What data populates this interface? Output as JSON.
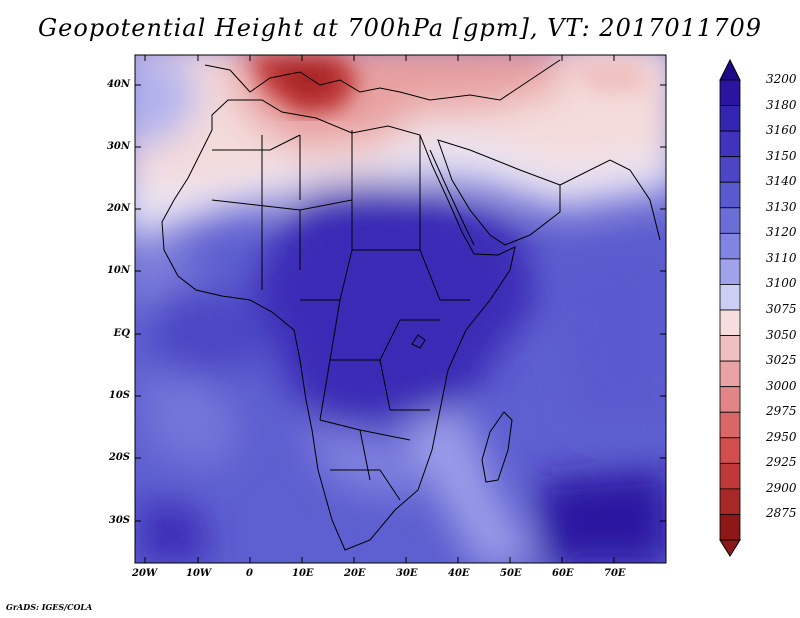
{
  "title": "Geopotential Height at 700hPa [gpm], VT: 2017011709",
  "lat_labels": [
    "40N",
    "30N",
    "20N",
    "10N",
    "EQ",
    "10S",
    "20S",
    "30S"
  ],
  "lon_labels": [
    "20W",
    "10W",
    "0",
    "10E",
    "20E",
    "30E",
    "40E",
    "50E",
    "60E",
    "70E"
  ],
  "colorbar": {
    "labels": [
      "3200",
      "3180",
      "3160",
      "3150",
      "3140",
      "3130",
      "3120",
      "3110",
      "3100",
      "3075",
      "3050",
      "3025",
      "3000",
      "2975",
      "2950",
      "2925",
      "2900",
      "2875"
    ],
    "colors": [
      "#2a14a0",
      "#3424b2",
      "#4034bc",
      "#4c46c4",
      "#5a5ace",
      "#6c6ed8",
      "#8284e2",
      "#a0a2ea",
      "#cccff4",
      "#f6dede",
      "#f0c0c0",
      "#e8a4a4",
      "#e08686",
      "#d86868",
      "#d04e4e",
      "#c03838",
      "#a82828",
      "#8e1818"
    ]
  },
  "footer": "GrADS: IGES/COLA"
}
